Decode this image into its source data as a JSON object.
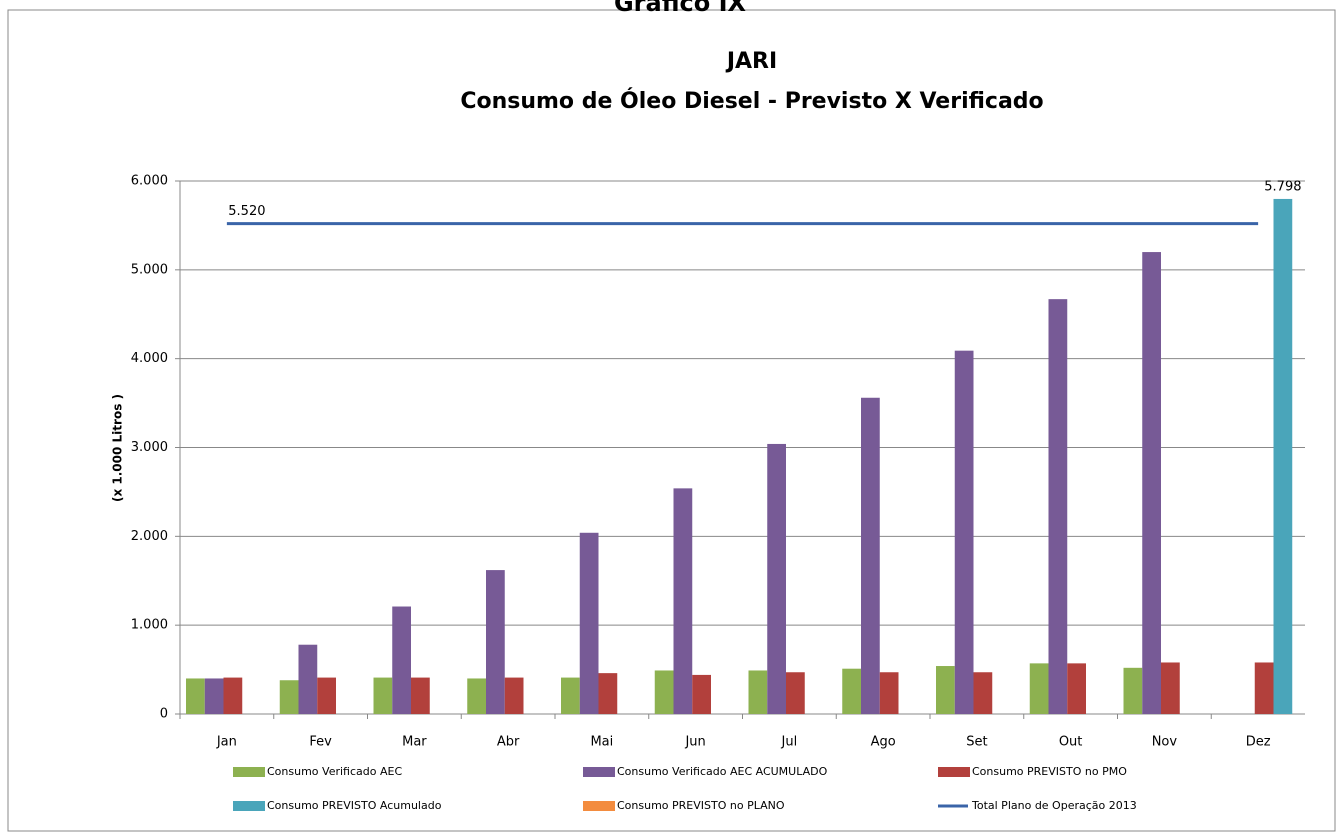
{
  "chart_data": {
    "type": "bar",
    "caption": "Gráfico IX",
    "title": "JARI",
    "subtitle": "Consumo de Óleo Diesel - Previsto X Verificado",
    "y_label": "(x 1.000 Litros )",
    "categories": [
      "Jan",
      "Fev",
      "Mar",
      "Abr",
      "Mai",
      "Jun",
      "Jul",
      "Ago",
      "Set",
      "Out",
      "Nov",
      "Dez"
    ],
    "series": [
      {
        "name": "Consumo Verificado AEC",
        "color": "#8db150",
        "type": "bar",
        "values": [
          400,
          380,
          410,
          400,
          410,
          490,
          490,
          510,
          540,
          570,
          520,
          null
        ]
      },
      {
        "name": "Consumo Verificado AEC ACUMULADO",
        "color": "#775a96",
        "type": "bar",
        "values": [
          400,
          780,
          1210,
          1620,
          2040,
          2540,
          3040,
          3560,
          4090,
          4670,
          5200,
          null
        ]
      },
      {
        "name": "Consumo PREVISTO no PMO",
        "color": "#b2403c",
        "type": "bar",
        "values": [
          410,
          410,
          410,
          410,
          460,
          440,
          470,
          470,
          470,
          570,
          580,
          580
        ]
      },
      {
        "name": "Consumo PREVISTO Acumulado",
        "color": "#4aa5ba",
        "type": "bar",
        "values": [
          null,
          null,
          null,
          null,
          null,
          null,
          null,
          null,
          null,
          null,
          null,
          5798
        ],
        "value_labels": [
          null,
          null,
          null,
          null,
          null,
          null,
          null,
          null,
          null,
          null,
          null,
          "5.798"
        ]
      },
      {
        "name": "Consumo PREVISTO no PLANO",
        "color": "#f38c3f",
        "type": "bar",
        "values": [
          null,
          null,
          null,
          null,
          null,
          null,
          null,
          null,
          null,
          null,
          null,
          null
        ]
      },
      {
        "name": "Total Plano de Operação 2013",
        "color": "#3a64a8",
        "type": "line",
        "values": [
          5520,
          5520,
          5520,
          5520,
          5520,
          5520,
          5520,
          5520,
          5520,
          5520,
          5520,
          5520
        ],
        "value_labels": [
          "5.520",
          null,
          null,
          null,
          null,
          null,
          null,
          null,
          null,
          null,
          null,
          null
        ]
      }
    ],
    "ylim": [
      0,
      6000
    ],
    "yticks": [
      0,
      {
        "value": 1000,
        "label": "1.000"
      },
      {
        "value": 2000,
        "label": "2.000"
      },
      {
        "value": 3000,
        "label": "3.000"
      },
      {
        "value": 4000,
        "label": "4.000"
      },
      {
        "value": 5000,
        "label": "5.000"
      },
      {
        "value": 6000,
        "label": "6.000"
      }
    ],
    "grid": true,
    "legend": "bottom"
  }
}
